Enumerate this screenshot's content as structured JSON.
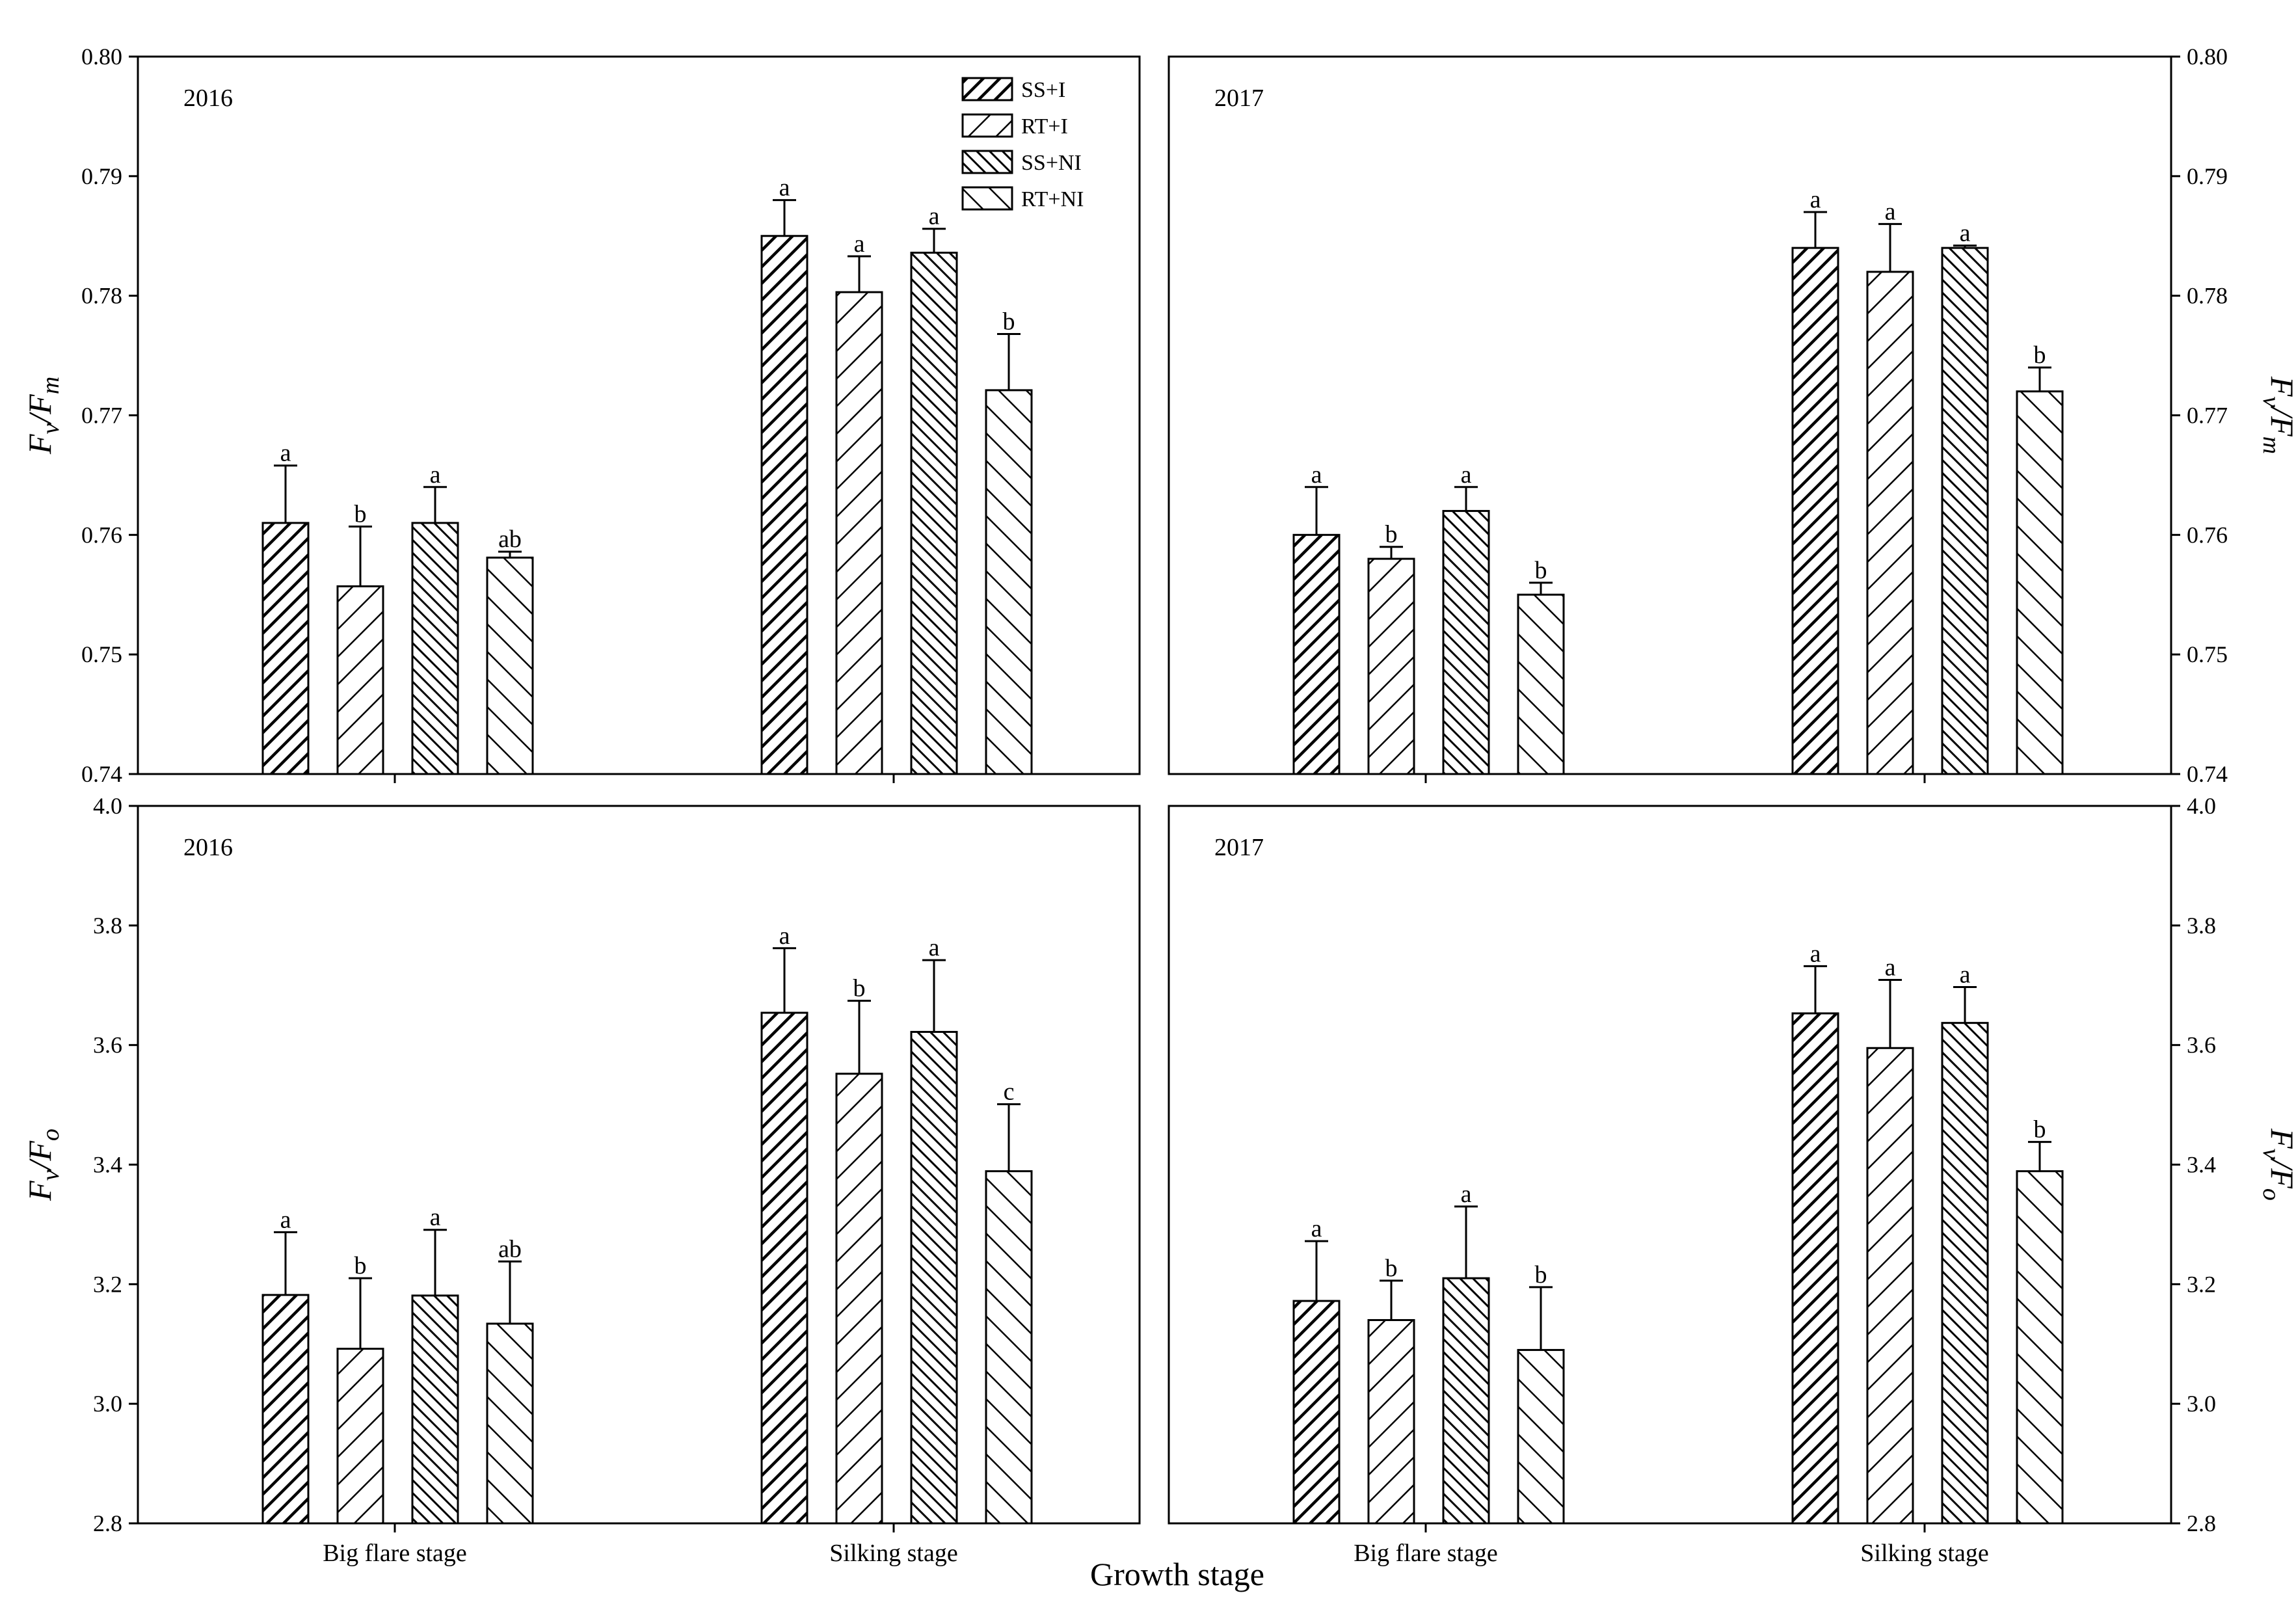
{
  "chart_data": {
    "type": "bar",
    "xlabel": "Growth stage",
    "categories": [
      "Big flare stage",
      "Silking stage"
    ],
    "legend": {
      "position": "top-right",
      "entries": [
        {
          "name": "SS+I",
          "pattern": "hatch-dense"
        },
        {
          "name": "RT+I",
          "pattern": "hatch-sparse"
        },
        {
          "name": "SS+NI",
          "pattern": "backhatch-dense"
        },
        {
          "name": "RT+NI",
          "pattern": "backhatch-sparse"
        }
      ]
    },
    "panels": [
      {
        "id": "fvfm-2016",
        "year": "2016",
        "ylabel": {
          "main": "F",
          "sub1": "v",
          "sep": "/F",
          "sub2": "m"
        },
        "ylim": [
          0.74,
          0.8
        ],
        "yticks": [
          "0.74",
          "0.75",
          "0.76",
          "0.77",
          "0.78",
          "0.79",
          "0.80"
        ],
        "series": [
          {
            "name": "SS+I",
            "values": [
              0.761,
              0.785
            ],
            "errors": [
              0.0048,
              0.003
            ],
            "letters": [
              "a",
              "a"
            ]
          },
          {
            "name": "RT+I",
            "values": [
              0.7557,
              0.7803
            ],
            "errors": [
              0.005,
              0.003
            ],
            "letters": [
              "b",
              "a"
            ]
          },
          {
            "name": "SS+NI",
            "values": [
              0.761,
              0.7836
            ],
            "errors": [
              0.003,
              0.002
            ],
            "letters": [
              "a",
              "a"
            ]
          },
          {
            "name": "RT+NI",
            "values": [
              0.7581,
              0.7721
            ],
            "errors": [
              0.0005,
              0.0047
            ],
            "letters": [
              "ab",
              "b"
            ]
          }
        ]
      },
      {
        "id": "fvfm-2017",
        "year": "2017",
        "ylabel": {
          "main": "F",
          "sub1": "v",
          "sep": "/F",
          "sub2": "m"
        },
        "ylim": [
          0.74,
          0.8
        ],
        "yticks": [
          "0.74",
          "0.75",
          "0.76",
          "0.77",
          "0.78",
          "0.79",
          "0.80"
        ],
        "series": [
          {
            "name": "SS+I",
            "values": [
              0.76,
              0.784
            ],
            "errors": [
              0.004,
              0.003
            ],
            "letters": [
              "a",
              "a"
            ]
          },
          {
            "name": "RT+I",
            "values": [
              0.758,
              0.782
            ],
            "errors": [
              0.001,
              0.004
            ],
            "letters": [
              "b",
              "a"
            ]
          },
          {
            "name": "SS+NI",
            "values": [
              0.762,
              0.784
            ],
            "errors": [
              0.002,
              0.0002
            ],
            "letters": [
              "a",
              "a"
            ]
          },
          {
            "name": "RT+NI",
            "values": [
              0.755,
              0.772
            ],
            "errors": [
              0.001,
              0.002
            ],
            "letters": [
              "b",
              "b"
            ]
          }
        ]
      },
      {
        "id": "fvfo-2016",
        "year": "2016",
        "ylabel": {
          "main": "F",
          "sub1": "v",
          "sep": "/F",
          "sub2": "o"
        },
        "ylim": [
          2.8,
          4.0
        ],
        "yticks": [
          "2.8",
          "3.0",
          "3.2",
          "3.4",
          "3.6",
          "3.8",
          "4.0"
        ],
        "series": [
          {
            "name": "SS+I",
            "values": [
              3.182,
              3.654
            ],
            "errors": [
              0.105,
              0.108
            ],
            "letters": [
              "a",
              "a"
            ]
          },
          {
            "name": "RT+I",
            "values": [
              3.092,
              3.552
            ],
            "errors": [
              0.118,
              0.122
            ],
            "letters": [
              "b",
              "b"
            ]
          },
          {
            "name": "SS+NI",
            "values": [
              3.181,
              3.622
            ],
            "errors": [
              0.11,
              0.12
            ],
            "letters": [
              "a",
              "a"
            ]
          },
          {
            "name": "RT+NI",
            "values": [
              3.134,
              3.389
            ],
            "errors": [
              0.104,
              0.112
            ],
            "letters": [
              "ab",
              "c"
            ]
          }
        ]
      },
      {
        "id": "fvfo-2017",
        "year": "2017",
        "ylabel": {
          "main": "F",
          "sub1": "v",
          "sep": "/F",
          "sub2": "o"
        },
        "ylim": [
          2.8,
          4.0
        ],
        "yticks": [
          "2.8",
          "3.0",
          "3.2",
          "3.4",
          "3.6",
          "3.8",
          "4.0"
        ],
        "series": [
          {
            "name": "SS+I",
            "values": [
              3.172,
              3.653
            ],
            "errors": [
              0.1,
              0.079
            ],
            "letters": [
              "a",
              "a"
            ]
          },
          {
            "name": "RT+I",
            "values": [
              3.14,
              3.595
            ],
            "errors": [
              0.066,
              0.114
            ],
            "letters": [
              "b",
              "a"
            ]
          },
          {
            "name": "SS+NI",
            "values": [
              3.21,
              3.637
            ],
            "errors": [
              0.12,
              0.06
            ],
            "letters": [
              "a",
              "a"
            ]
          },
          {
            "name": "RT+NI",
            "values": [
              3.09,
              3.389
            ],
            "errors": [
              0.105,
              0.049
            ],
            "letters": [
              "b",
              "b"
            ]
          }
        ]
      }
    ]
  }
}
